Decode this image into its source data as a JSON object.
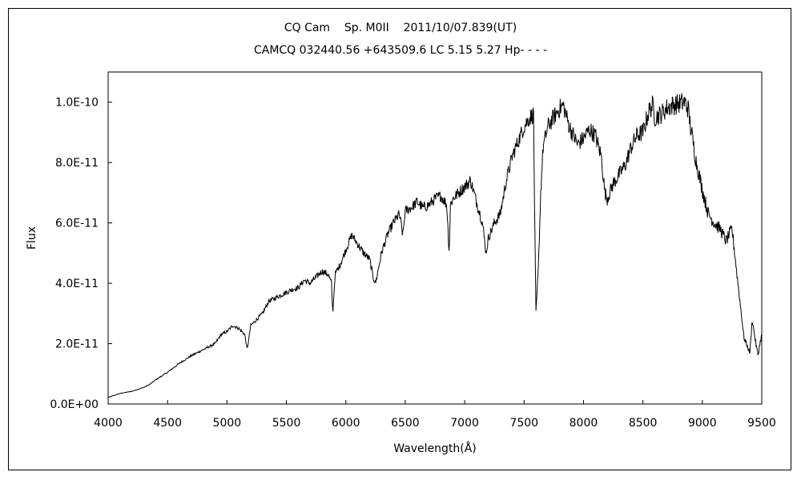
{
  "chart_data": {
    "type": "line",
    "title": "CQ Cam    Sp. M0II    2011/10/07.839(UT)",
    "subtitle": "CAMCQ 032440.56 +643509.6 LC 5.15 5.27 Hp- - - -",
    "xlabel": "Wavelength(Å)",
    "ylabel": "Flux",
    "xlim": [
      4000,
      9500
    ],
    "ylim": [
      0,
      1.1e-10
    ],
    "xticks": [
      4000,
      4500,
      5000,
      5500,
      6000,
      6500,
      7000,
      7500,
      8000,
      8500,
      9000,
      9500
    ],
    "xtick_labels": [
      "4000",
      "4500",
      "5000",
      "5500",
      "6000",
      "6500",
      "7000",
      "7500",
      "8000",
      "8500",
      "9000",
      "9500"
    ],
    "yticks": [
      0,
      2e-11,
      4e-11,
      6e-11,
      8e-11,
      1e-10
    ],
    "ytick_labels": [
      "0.0E+00",
      "2.0E-11",
      "4.0E-11",
      "6.0E-11",
      "8.0E-11",
      "1.0E-10"
    ],
    "grid": false,
    "line_color": "#000000",
    "series": [
      {
        "x": [
          4000,
          4100,
          4200,
          4300,
          4350,
          4400,
          4500,
          4600,
          4700,
          4800,
          4850,
          4900,
          4950,
          5000,
          5050,
          5100,
          5150,
          5170,
          5200,
          5250,
          5300,
          5350,
          5400,
          5450,
          5500,
          5550,
          5600,
          5650,
          5700,
          5750,
          5800,
          5850,
          5880,
          5890,
          5910,
          5950,
          6000,
          6050,
          6100,
          6150,
          6200,
          6230,
          6250,
          6300,
          6350,
          6400,
          6450,
          6480,
          6500,
          6550,
          6600,
          6650,
          6700,
          6750,
          6800,
          6850,
          6870,
          6880,
          6900,
          6950,
          7000,
          7050,
          7100,
          7150,
          7180,
          7200,
          7250,
          7300,
          7350,
          7400,
          7450,
          7500,
          7550,
          7580,
          7590,
          7600,
          7620,
          7640,
          7660,
          7700,
          7750,
          7800,
          7830,
          7880,
          7950,
          8000,
          8050,
          8100,
          8150,
          8180,
          8200,
          8250,
          8300,
          8350,
          8400,
          8450,
          8500,
          8550,
          8580,
          8600,
          8650,
          8700,
          8750,
          8800,
          8850,
          8880,
          8900,
          8950,
          9000,
          9050,
          9100,
          9150,
          9200,
          9250,
          9300,
          9350,
          9380,
          9400,
          9420,
          9450,
          9470,
          9480,
          9500
        ],
        "values": [
          2.2e-12,
          3.5e-12,
          4.2e-12,
          5.5e-12,
          6.5e-12,
          8e-12,
          1.05e-11,
          1.35e-11,
          1.6e-11,
          1.8e-11,
          1.9e-11,
          2e-11,
          2.3e-11,
          2.4e-11,
          2.6e-11,
          2.5e-11,
          2.3e-11,
          1.8e-11,
          2.6e-11,
          2.8e-11,
          3e-11,
          3.4e-11,
          3.5e-11,
          3.6e-11,
          3.7e-11,
          3.8e-11,
          3.85e-11,
          4.1e-11,
          4e-11,
          4.2e-11,
          4.4e-11,
          4.3e-11,
          4e-11,
          3e-11,
          4.3e-11,
          4.6e-11,
          5.1e-11,
          5.6e-11,
          5.3e-11,
          5e-11,
          4.8e-11,
          4.2e-11,
          4e-11,
          5e-11,
          5.6e-11,
          6e-11,
          6.3e-11,
          5.6e-11,
          6.4e-11,
          6.5e-11,
          6.7e-11,
          6.5e-11,
          6.6e-11,
          6.8e-11,
          6.9e-11,
          6.6e-11,
          5e-11,
          6.6e-11,
          6.8e-11,
          7e-11,
          7.2e-11,
          7.4e-11,
          6.7e-11,
          6e-11,
          5e-11,
          5.5e-11,
          6e-11,
          6.3e-11,
          7.4e-11,
          8.2e-11,
          8.7e-11,
          9.2e-11,
          9.5e-11,
          9.6e-11,
          6e-11,
          3e-11,
          4.5e-11,
          7e-11,
          8.5e-11,
          9.2e-11,
          9.5e-11,
          9.8e-11,
          9.9e-11,
          9.2e-11,
          8.6e-11,
          8.8e-11,
          9.1e-11,
          8.9e-11,
          8.2e-11,
          7e-11,
          6.8e-11,
          7.3e-11,
          7.6e-11,
          7.9e-11,
          8.5e-11,
          8.9e-11,
          9e-11,
          9.7e-11,
          9.9e-11,
          9.5e-11,
          9.6e-11,
          9.8e-11,
          9.9e-11,
          9.95e-11,
          1e-10,
          9.8e-11,
          9.2e-11,
          8e-11,
          7.1e-11,
          6.3e-11,
          6e-11,
          5.8e-11,
          5.4e-11,
          5.8e-11,
          4e-11,
          2.2e-11,
          1.9e-11,
          1.7e-11,
          2.8e-11,
          2e-11,
          1.6e-11,
          1.9e-11,
          2.3e-11
        ]
      }
    ]
  }
}
